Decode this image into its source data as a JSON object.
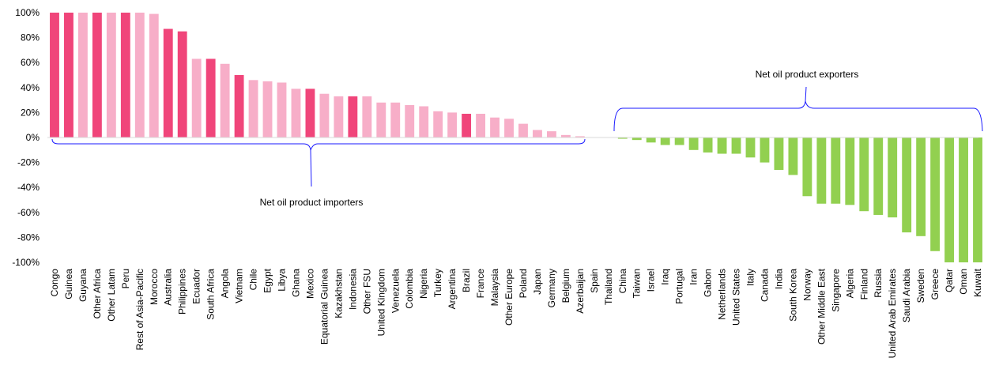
{
  "chart_data": {
    "type": "bar",
    "ylim": [
      -100,
      100
    ],
    "yticks": [
      "100%",
      "80%",
      "60%",
      "40%",
      "20%",
      "0%",
      "-20%",
      "-40%",
      "-60%",
      "-80%",
      "-100%"
    ],
    "grid": false,
    "legend": "none",
    "annotations": {
      "importers": "Net oil product importers",
      "exporters": "Net oil product exporters"
    },
    "colors": {
      "dark_pink": "#f0457a",
      "light_pink": "#f7aec8",
      "green": "#92d050",
      "bracket": "#1a1aff"
    },
    "categories": [
      "Congo",
      "Guinea",
      "Guyana",
      "Other Africa",
      "Other Latam",
      "Peru",
      "Rest of Asia-Pacific",
      "Morocco",
      "Australia",
      "Philippines",
      "Ecuador",
      "South Africa",
      "Angola",
      "Vietnam",
      "Chile",
      "Egypt",
      "Libya",
      "Ghana",
      "Mexico",
      "Equatorial Guinea",
      "Kazakhstan",
      "Indonesia",
      "Other FSU",
      "United Kingdom",
      "Venezuela",
      "Colombia",
      "Nigeria",
      "Turkey",
      "Argentina",
      "Brazil",
      "France",
      "Malaysia",
      "Other Europe",
      "Poland",
      "Japan",
      "Germany",
      "Belgium",
      "Azerbaijan",
      "Spain",
      "Thailand",
      "China",
      "Taiwan",
      "Israel",
      "Iraq",
      "Portugal",
      "Iran",
      "Gabon",
      "Netherlands",
      "United States",
      "Italy",
      "Canada",
      "India",
      "South Korea",
      "Norway",
      "Other Middle East",
      "Singapore",
      "Algeria",
      "Finland",
      "Russia",
      "United Arab Emirates",
      "Saudi Arabia",
      "Sweden",
      "Greece",
      "Qatar",
      "Oman",
      "Kuwait"
    ],
    "values": [
      100,
      100,
      100,
      100,
      100,
      100,
      100,
      99,
      87,
      85,
      63,
      63,
      59,
      50,
      46,
      45,
      44,
      39,
      39,
      35,
      33,
      33,
      33,
      28,
      28,
      26,
      25,
      21,
      20,
      19,
      19,
      16,
      15,
      11,
      6,
      5,
      2,
      1,
      0,
      0,
      -1,
      -2,
      -4,
      -6,
      -6,
      -10,
      -12,
      -13,
      -13,
      -16,
      -20,
      -26,
      -30,
      -47,
      -53,
      -53,
      -54,
      -59,
      -62,
      -64,
      -76,
      -79,
      -91,
      -100,
      -100,
      -100
    ],
    "bar_colors": [
      "dark_pink",
      "dark_pink",
      "light_pink",
      "dark_pink",
      "light_pink",
      "dark_pink",
      "light_pink",
      "light_pink",
      "dark_pink",
      "dark_pink",
      "light_pink",
      "dark_pink",
      "light_pink",
      "dark_pink",
      "light_pink",
      "light_pink",
      "light_pink",
      "light_pink",
      "dark_pink",
      "light_pink",
      "light_pink",
      "dark_pink",
      "light_pink",
      "light_pink",
      "light_pink",
      "light_pink",
      "light_pink",
      "light_pink",
      "light_pink",
      "dark_pink",
      "light_pink",
      "light_pink",
      "light_pink",
      "light_pink",
      "light_pink",
      "light_pink",
      "light_pink",
      "light_pink",
      "light_pink",
      "light_pink",
      "green",
      "green",
      "green",
      "green",
      "green",
      "green",
      "green",
      "green",
      "green",
      "green",
      "green",
      "green",
      "green",
      "green",
      "green",
      "green",
      "green",
      "green",
      "green",
      "green",
      "green",
      "green",
      "green",
      "green",
      "green",
      "green"
    ]
  }
}
